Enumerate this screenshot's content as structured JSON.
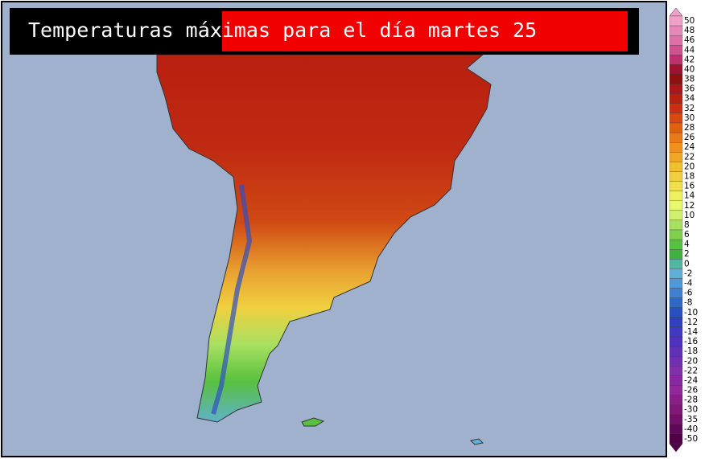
{
  "title": "Temperaturas máximas para el día martes 25",
  "legend": {
    "labels": [
      50,
      48,
      46,
      44,
      42,
      40,
      38,
      36,
      34,
      32,
      30,
      28,
      26,
      24,
      22,
      20,
      18,
      16,
      14,
      12,
      10,
      8,
      6,
      4,
      2,
      0,
      -2,
      -4,
      -6,
      -8,
      -10,
      -12,
      -14,
      -16,
      -18,
      -20,
      -22,
      -24,
      -26,
      -28,
      -30,
      -35,
      -40,
      -50
    ],
    "colors": [
      "#f0a0c8",
      "#e888b8",
      "#e070a8",
      "#d05090",
      "#c03070",
      "#a01030",
      "#901010",
      "#a81818",
      "#b82010",
      "#c83010",
      "#d84810",
      "#e06010",
      "#e87818",
      "#f09020",
      "#f0a828",
      "#f0c030",
      "#f0d040",
      "#f0e050",
      "#f0f060",
      "#e8f870",
      "#d0f070",
      "#a8e060",
      "#80d050",
      "#58c040",
      "#40b040",
      "#50b8a0",
      "#60b0d8",
      "#5098d8",
      "#4080d0",
      "#3068c8",
      "#2850c0",
      "#3040c0",
      "#4038c0",
      "#5030c0",
      "#6030b8",
      "#7030b0",
      "#8030a8",
      "#8828a0",
      "#902898",
      "#882088",
      "#801878",
      "#701068",
      "#600858",
      "#500048"
    ]
  }
}
